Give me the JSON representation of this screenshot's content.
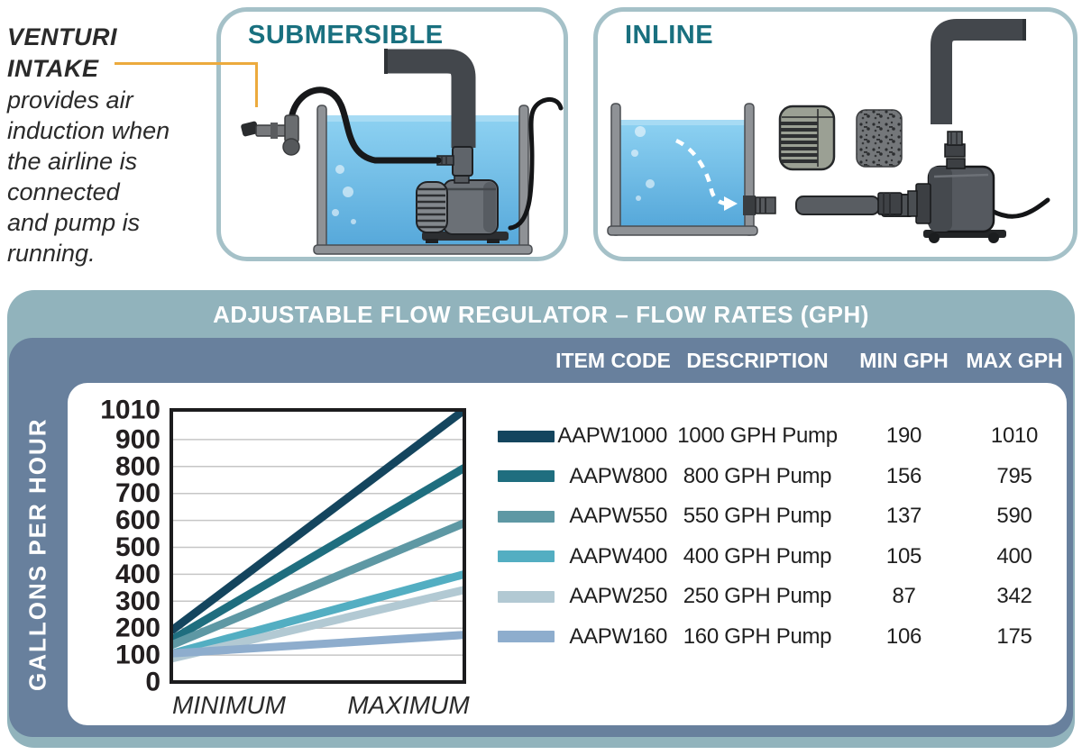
{
  "venturi_note": {
    "title": "VENTURI\nINTAKE",
    "body": "provides air\ninduction when\nthe airline is\nconnected\nand pump is\nrunning."
  },
  "panels": {
    "submersible": {
      "title": "SUBMERSIBLE"
    },
    "inline": {
      "title": "INLINE"
    }
  },
  "flow_section": {
    "title": "ADJUSTABLE FLOW REGULATOR – FLOW RATES (GPH)",
    "y_axis_label": "GALLONS PER HOUR",
    "columns": [
      "ITEM CODE",
      "DESCRIPTION",
      "MIN GPH",
      "MAX GPH"
    ],
    "rows": [
      {
        "item_code": "AAPW1000",
        "description": "1000 GPH Pump",
        "min_gph": "190",
        "max_gph": "1010",
        "color": "#14455e"
      },
      {
        "item_code": "AAPW800",
        "description": "800 GPH Pump",
        "min_gph": "156",
        "max_gph": "795",
        "color": "#1f6e7f"
      },
      {
        "item_code": "AAPW550",
        "description": "550 GPH Pump",
        "min_gph": "137",
        "max_gph": "590",
        "color": "#5e98a4"
      },
      {
        "item_code": "AAPW400",
        "description": "400 GPH Pump",
        "min_gph": "105",
        "max_gph": "400",
        "color": "#53aec2"
      },
      {
        "item_code": "AAPW250",
        "description": "250 GPH Pump",
        "min_gph": "87",
        "max_gph": "342",
        "color": "#b2c9d3"
      },
      {
        "item_code": "AAPW160",
        "description": "160 GPH Pump",
        "min_gph": "106",
        "max_gph": "175",
        "color": "#8eadcd"
      }
    ]
  },
  "chart_data": {
    "type": "line",
    "title": "ADJUSTABLE FLOW REGULATOR – FLOW RATES (GPH)",
    "ylabel": "GALLONS PER HOUR",
    "x_categories": [
      "MINIMUM",
      "MAXIMUM"
    ],
    "y_ticks": [
      0,
      100,
      200,
      300,
      400,
      500,
      600,
      700,
      800,
      900,
      1010
    ],
    "ylim": [
      0,
      1010
    ],
    "grid": true,
    "legend_position": "right-table",
    "series": [
      {
        "name": "AAPW1000",
        "values": [
          190,
          1010
        ],
        "color": "#14455e"
      },
      {
        "name": "AAPW800",
        "values": [
          156,
          795
        ],
        "color": "#1f6e7f"
      },
      {
        "name": "AAPW550",
        "values": [
          137,
          590
        ],
        "color": "#5e98a4"
      },
      {
        "name": "AAPW400",
        "values": [
          105,
          400
        ],
        "color": "#53aec2"
      },
      {
        "name": "AAPW250",
        "values": [
          87,
          342
        ],
        "color": "#b2c9d3"
      },
      {
        "name": "AAPW160",
        "values": [
          106,
          175
        ],
        "color": "#8eadcd"
      }
    ]
  },
  "colors": {
    "header_teal": "#91b3bc",
    "slate_panel": "#68809d",
    "panel_border": "#a5c1c8",
    "diagram_title_teal": "#19707f",
    "connector_orange": "#ecaa3d",
    "water_blue": "#74c0e9",
    "text_dark": "#262626"
  }
}
